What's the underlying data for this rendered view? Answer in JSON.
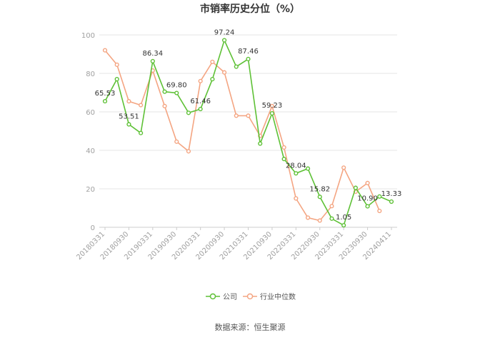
{
  "chart_data": {
    "type": "line",
    "title": "市销率历史分位（%）",
    "x": [
      "20180331",
      "20180630",
      "20180930",
      "20181231",
      "20190331",
      "20190630",
      "20190930",
      "20191231",
      "20200331",
      "20200630",
      "20200930",
      "20201231",
      "20210331",
      "20210630",
      "20210930",
      "20211231",
      "20220331",
      "20220630",
      "20220930",
      "20221231",
      "20230331",
      "20230630",
      "20230930",
      "20231231",
      "20240411"
    ],
    "x_tick_labels": [
      "20180331",
      "20180930",
      "20190331",
      "20190930",
      "20200331",
      "20200930",
      "20210331",
      "20210930",
      "20220331",
      "20220930",
      "20230331",
      "20230930",
      "20240411"
    ],
    "ylim": [
      0,
      100
    ],
    "y_ticks": [
      0,
      20,
      40,
      60,
      80,
      100
    ],
    "grid": true,
    "legend_position": "bottom",
    "series": [
      {
        "name": "公司",
        "color": "#5ec136",
        "values": [
          65.53,
          77,
          53.51,
          49,
          86.34,
          70.5,
          69.8,
          59.5,
          61.46,
          77,
          97.24,
          83.5,
          87.46,
          43.5,
          59.23,
          35.5,
          28.04,
          30.5,
          15.82,
          4.5,
          1.05,
          20.5,
          10.9,
          16,
          13.33
        ],
        "data_labels": [
          {
            "index": 0,
            "text": "65.53"
          },
          {
            "index": 2,
            "text": "53.51"
          },
          {
            "index": 4,
            "text": "86.34"
          },
          {
            "index": 6,
            "text": "69.80"
          },
          {
            "index": 8,
            "text": "61.46"
          },
          {
            "index": 10,
            "text": "97.24"
          },
          {
            "index": 12,
            "text": "87.46"
          },
          {
            "index": 14,
            "text": "59.23"
          },
          {
            "index": 16,
            "text": "28.04"
          },
          {
            "index": 18,
            "text": "15.82"
          },
          {
            "index": 20,
            "text": "1.05"
          },
          {
            "index": 22,
            "text": "10.90"
          },
          {
            "index": 24,
            "text": "13.33"
          }
        ]
      },
      {
        "name": "行业中位数",
        "color": "#f4a582",
        "values": [
          92,
          84.5,
          65.5,
          63.5,
          81.5,
          63,
          44.5,
          39.5,
          76,
          86,
          80.5,
          58,
          58,
          47.5,
          63,
          41.5,
          15,
          5,
          3.5,
          11,
          31,
          18.5,
          23,
          8.5,
          null
        ]
      }
    ]
  },
  "footer": {
    "source": "数据来源：恒生聚源"
  }
}
